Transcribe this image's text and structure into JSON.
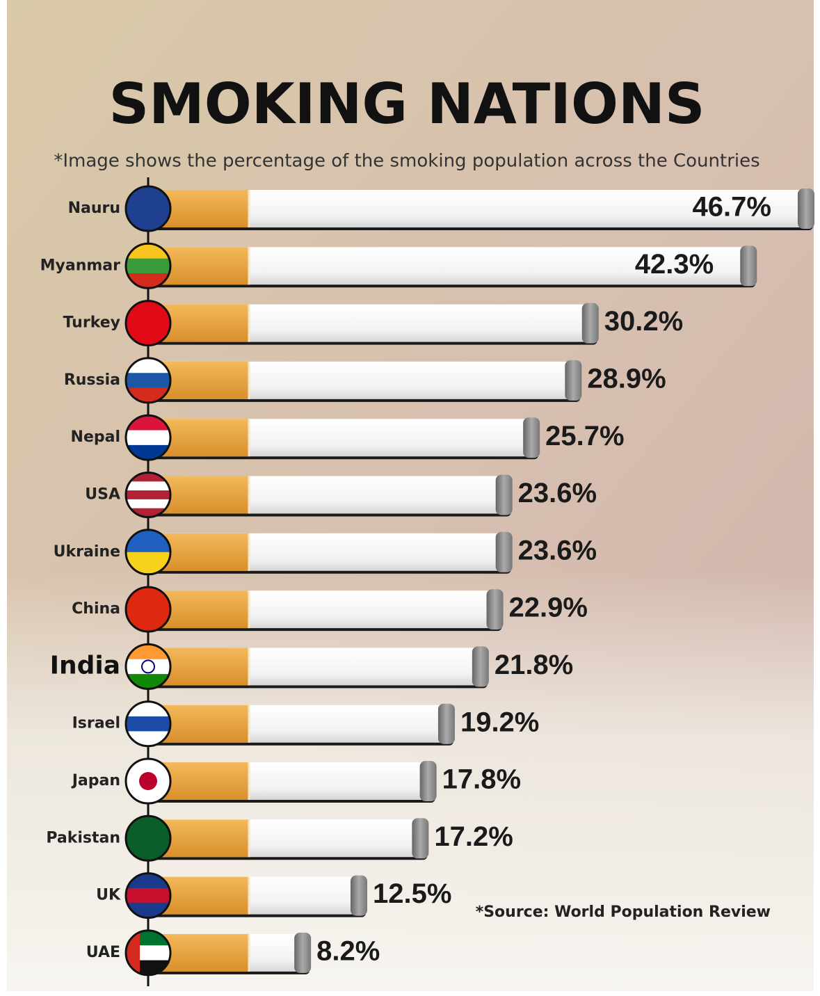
{
  "chart_data": {
    "type": "bar",
    "orientation": "horizontal",
    "title": "SMOKING NATIONS",
    "subtitle": "*Image shows the percentage of the smoking population across the Countries",
    "categories": [
      "Nauru",
      "Myanmar",
      "Turkey",
      "Russia",
      "Nepal",
      "USA",
      "Ukraine",
      "China",
      "India",
      "Israel",
      "Japan",
      "Pakistan",
      "UK",
      "UAE"
    ],
    "values": [
      46.7,
      42.3,
      30.2,
      28.9,
      25.7,
      23.6,
      23.6,
      22.9,
      21.8,
      19.2,
      17.8,
      17.2,
      12.5,
      8.2
    ],
    "value_labels": [
      "46.7%",
      "42.3%",
      "30.2%",
      "28.9%",
      "25.7%",
      "23.6%",
      "23.6%",
      "22.9%",
      "21.8%",
      "19.2%",
      "17.8%",
      "17.2%",
      "12.5%",
      "8.2%"
    ],
    "color": "#e9a341",
    "source": "*Source: World Population Review"
  }
}
